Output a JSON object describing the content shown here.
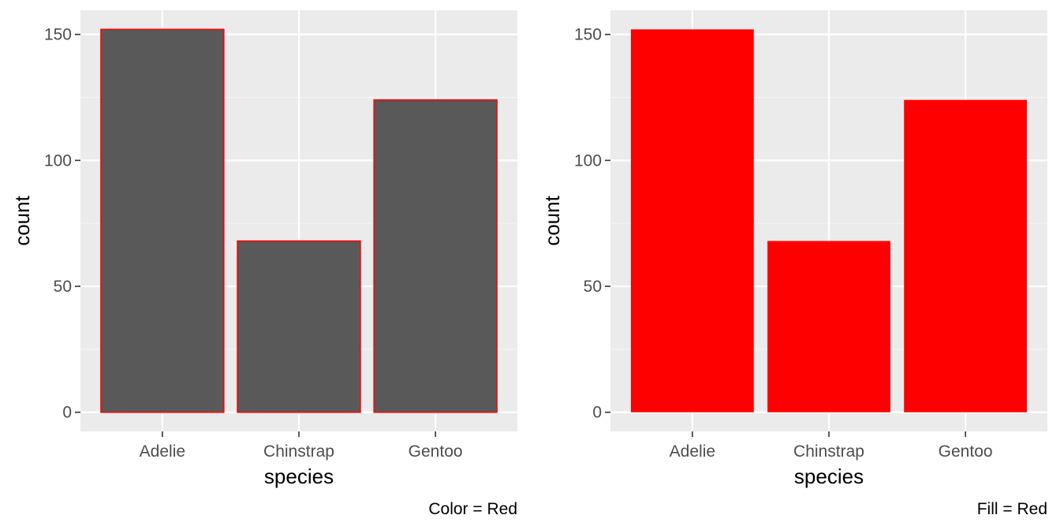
{
  "colors": {
    "panel_background": "#EBEBEB",
    "grid_major": "#FFFFFF",
    "grid_minor": "#F5F5F5",
    "tick_mark": "#333333",
    "tick_label": "#4D4D4D",
    "default_bar_fill": "#595959",
    "accent_red": "#FF0000"
  },
  "chart_data": [
    {
      "type": "bar",
      "categories": [
        "Adelie",
        "Chinstrap",
        "Gentoo"
      ],
      "values": [
        152,
        68,
        124
      ],
      "xlabel": "species",
      "ylabel": "count",
      "yticks": [
        0,
        50,
        100,
        150
      ],
      "ylim": [
        -7.6,
        159.6
      ],
      "caption": "Color = Red",
      "bar_fill": "#595959",
      "bar_outline": "#FF0000",
      "grid": true,
      "legend": "none"
    },
    {
      "type": "bar",
      "categories": [
        "Adelie",
        "Chinstrap",
        "Gentoo"
      ],
      "values": [
        152,
        68,
        124
      ],
      "xlabel": "species",
      "ylabel": "count",
      "yticks": [
        0,
        50,
        100,
        150
      ],
      "ylim": [
        -7.6,
        159.6
      ],
      "caption": "Fill = Red",
      "bar_fill": "#FF0000",
      "bar_outline": "none",
      "grid": true,
      "legend": "none"
    }
  ]
}
